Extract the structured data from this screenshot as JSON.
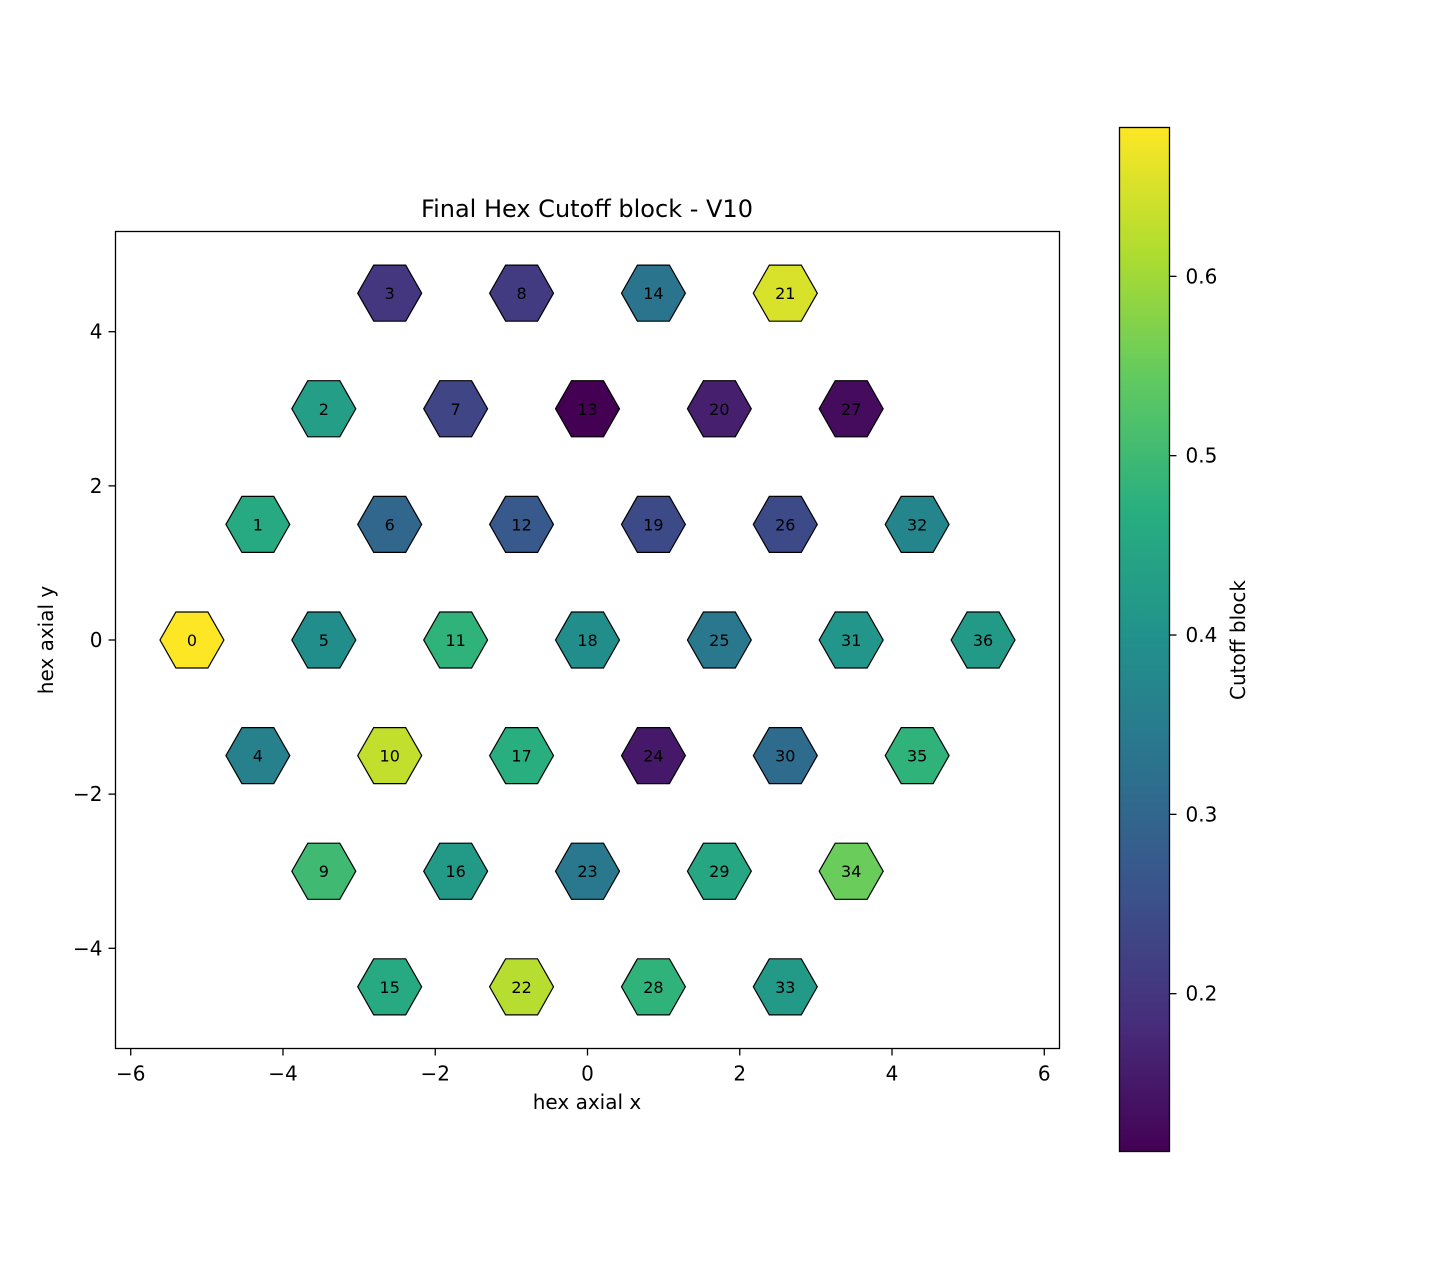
{
  "chart_data": {
    "type": "heatmap",
    "title": "Final Hex Cutoff block - V10",
    "xlabel": "hex axial x",
    "ylabel": "hex axial y",
    "xlim": [
      -6.2,
      6.2
    ],
    "ylim": [
      -5.3,
      5.3
    ],
    "xticks": [
      -6,
      -4,
      -2,
      0,
      2,
      4,
      6
    ],
    "yticks": [
      -4,
      -2,
      0,
      2,
      4
    ],
    "xtick_labels": [
      "−6",
      "−4",
      "−2",
      "0",
      "2",
      "4",
      "6"
    ],
    "ytick_labels": [
      "−4",
      "−2",
      "0",
      "2",
      "4"
    ],
    "colorbar": {
      "label": "Cutoff block",
      "range": [
        0.112,
        0.683
      ],
      "ticks": [
        0.2,
        0.3,
        0.4,
        0.5,
        0.6
      ],
      "tick_labels": [
        "0.2",
        "0.3",
        "0.4",
        "0.5",
        "0.6"
      ],
      "colormap": "viridis"
    },
    "hexagons": [
      {
        "id": "0",
        "x": -5.196,
        "y": 0,
        "value": 0.683
      },
      {
        "id": "1",
        "x": -4.33,
        "y": 1.5,
        "value": 0.46
      },
      {
        "id": "2",
        "x": -3.464,
        "y": 3.0,
        "value": 0.43
      },
      {
        "id": "3",
        "x": -2.598,
        "y": 4.5,
        "value": 0.2
      },
      {
        "id": "4",
        "x": -4.33,
        "y": -1.5,
        "value": 0.36
      },
      {
        "id": "5",
        "x": -3.464,
        "y": 0,
        "value": 0.39
      },
      {
        "id": "6",
        "x": -2.598,
        "y": 1.5,
        "value": 0.3
      },
      {
        "id": "7",
        "x": -1.732,
        "y": 3.0,
        "value": 0.23
      },
      {
        "id": "8",
        "x": -0.866,
        "y": 4.5,
        "value": 0.21
      },
      {
        "id": "9",
        "x": -3.464,
        "y": -3.0,
        "value": 0.5
      },
      {
        "id": "10",
        "x": -2.598,
        "y": -1.5,
        "value": 0.63
      },
      {
        "id": "11",
        "x": -1.732,
        "y": 0,
        "value": 0.48
      },
      {
        "id": "12",
        "x": -0.866,
        "y": 1.5,
        "value": 0.27
      },
      {
        "id": "13",
        "x": 0,
        "y": 3.0,
        "value": 0.112
      },
      {
        "id": "14",
        "x": 0.866,
        "y": 4.5,
        "value": 0.33
      },
      {
        "id": "15",
        "x": -2.598,
        "y": -4.5,
        "value": 0.46
      },
      {
        "id": "16",
        "x": -1.732,
        "y": -3.0,
        "value": 0.42
      },
      {
        "id": "17",
        "x": -0.866,
        "y": -1.5,
        "value": 0.47
      },
      {
        "id": "18",
        "x": 0,
        "y": 0,
        "value": 0.39
      },
      {
        "id": "19",
        "x": 0.866,
        "y": 1.5,
        "value": 0.24
      },
      {
        "id": "20",
        "x": 1.732,
        "y": 3.0,
        "value": 0.16
      },
      {
        "id": "21",
        "x": 2.598,
        "y": 4.5,
        "value": 0.65
      },
      {
        "id": "22",
        "x": -0.866,
        "y": -4.5,
        "value": 0.62
      },
      {
        "id": "23",
        "x": 0,
        "y": -3.0,
        "value": 0.34
      },
      {
        "id": "24",
        "x": 0.866,
        "y": -1.5,
        "value": 0.15
      },
      {
        "id": "25",
        "x": 1.732,
        "y": 0,
        "value": 0.34
      },
      {
        "id": "26",
        "x": 2.598,
        "y": 1.5,
        "value": 0.24
      },
      {
        "id": "27",
        "x": 3.464,
        "y": 3.0,
        "value": 0.13
      },
      {
        "id": "28",
        "x": 0.866,
        "y": -4.5,
        "value": 0.48
      },
      {
        "id": "29",
        "x": 1.732,
        "y": -3.0,
        "value": 0.45
      },
      {
        "id": "30",
        "x": 2.598,
        "y": -1.5,
        "value": 0.31
      },
      {
        "id": "31",
        "x": 3.464,
        "y": 0,
        "value": 0.41
      },
      {
        "id": "32",
        "x": 4.33,
        "y": 1.5,
        "value": 0.37
      },
      {
        "id": "33",
        "x": 2.598,
        "y": -4.5,
        "value": 0.42
      },
      {
        "id": "34",
        "x": 3.464,
        "y": -3.0,
        "value": 0.55
      },
      {
        "id": "35",
        "x": 4.33,
        "y": -1.5,
        "value": 0.48
      },
      {
        "id": "36",
        "x": 5.196,
        "y": 0,
        "value": 0.42
      }
    ]
  }
}
